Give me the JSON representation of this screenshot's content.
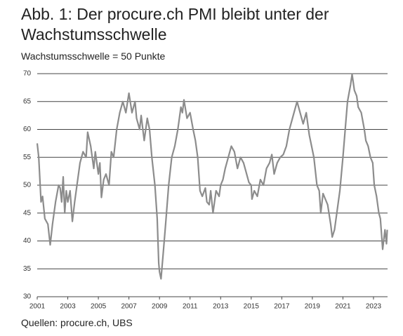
{
  "chart_data": {
    "type": "line",
    "title": "Abb. 1: Der procure.ch PMI bleibt unter der Wachstumsschwelle",
    "subtitle": "Wachstumsschwelle = 50 Punkte",
    "source": "Quellen: procure.ch, UBS",
    "x": [
      2001.0,
      2001.1,
      2001.25,
      2001.35,
      2001.5,
      2001.7,
      2001.85,
      2002.0,
      2002.2,
      2002.4,
      2002.5,
      2002.6,
      2002.7,
      2002.8,
      2002.9,
      2003.0,
      2003.15,
      2003.3,
      2003.45,
      2003.6,
      2003.8,
      2004.0,
      2004.2,
      2004.3,
      2004.5,
      2004.7,
      2004.8,
      2005.0,
      2005.1,
      2005.2,
      2005.35,
      2005.5,
      2005.7,
      2005.85,
      2006.0,
      2006.2,
      2006.4,
      2006.6,
      2006.8,
      2007.0,
      2007.2,
      2007.4,
      2007.5,
      2007.7,
      2007.8,
      2008.0,
      2008.2,
      2008.35,
      2008.5,
      2008.7,
      2008.85,
      2008.95,
      2009.0,
      2009.1,
      2009.25,
      2009.4,
      2009.6,
      2009.8,
      2010.0,
      2010.2,
      2010.4,
      2010.5,
      2010.6,
      2010.8,
      2011.0,
      2011.2,
      2011.35,
      2011.5,
      2011.65,
      2011.8,
      2012.0,
      2012.1,
      2012.25,
      2012.35,
      2012.5,
      2012.7,
      2012.9,
      2013.0,
      2013.15,
      2013.3,
      2013.5,
      2013.7,
      2013.9,
      2014.1,
      2014.3,
      2014.5,
      2014.7,
      2014.85,
      2015.0,
      2015.05,
      2015.2,
      2015.4,
      2015.6,
      2015.8,
      2016.0,
      2016.2,
      2016.35,
      2016.5,
      2016.7,
      2016.9,
      2017.1,
      2017.3,
      2017.5,
      2017.7,
      2017.9,
      2018.0,
      2018.2,
      2018.4,
      2018.6,
      2018.8,
      2018.95,
      2019.1,
      2019.3,
      2019.45,
      2019.55,
      2019.7,
      2019.85,
      2020.0,
      2020.2,
      2020.3,
      2020.45,
      2020.6,
      2020.8,
      2021.0,
      2021.15,
      2021.3,
      2021.5,
      2021.6,
      2021.75,
      2021.9,
      2022.0,
      2022.2,
      2022.4,
      2022.5,
      2022.65,
      2022.8,
      2022.95,
      2023.05,
      2023.2,
      2023.35,
      2023.45,
      2023.6,
      2023.75,
      2023.85,
      2023.9
    ],
    "series": [
      {
        "name": "procure.ch PMI",
        "color": "#8c8c8c",
        "values": [
          57.5,
          55,
          47,
          48,
          44,
          43,
          39.3,
          43,
          47,
          50,
          49.5,
          47,
          51.5,
          45,
          49,
          47,
          49,
          43.5,
          47,
          50,
          54,
          56,
          55,
          59.5,
          57,
          53,
          56,
          52,
          54,
          47.8,
          51,
          52,
          50,
          56,
          55,
          60,
          63,
          65,
          63,
          66.5,
          63,
          65,
          62,
          60,
          62.5,
          58,
          62,
          60,
          55,
          50,
          44,
          36,
          34.5,
          33.2,
          38,
          43,
          50,
          55,
          57,
          60,
          64,
          63,
          65.3,
          62,
          63,
          60,
          58,
          55,
          49,
          48,
          49.5,
          47,
          46.5,
          49,
          45,
          49,
          48,
          50,
          51,
          53,
          55,
          57,
          56,
          53,
          55,
          54,
          52,
          50.5,
          50,
          47.5,
          49,
          48,
          51,
          50,
          53,
          54,
          55.5,
          52,
          54,
          55,
          55.5,
          57,
          60,
          62,
          64,
          65,
          63,
          61,
          63,
          59,
          57,
          55,
          50,
          49,
          45,
          48.5,
          47.5,
          46.5,
          43,
          40.7,
          42,
          45,
          49,
          55,
          60,
          65,
          68,
          69.9,
          67,
          66,
          64,
          63,
          60,
          58,
          57,
          55,
          54,
          50,
          48,
          45,
          44,
          38.5,
          42,
          39.5,
          42
        ]
      }
    ],
    "xlim": [
      2001,
      2023.92
    ],
    "xticks": [
      2001,
      2003,
      2005,
      2007,
      2009,
      2011,
      2013,
      2015,
      2017,
      2019,
      2021,
      2023
    ],
    "ylim": [
      30,
      70
    ],
    "yticks": [
      30,
      35,
      40,
      45,
      50,
      55,
      60,
      65,
      70
    ],
    "grid": true
  }
}
